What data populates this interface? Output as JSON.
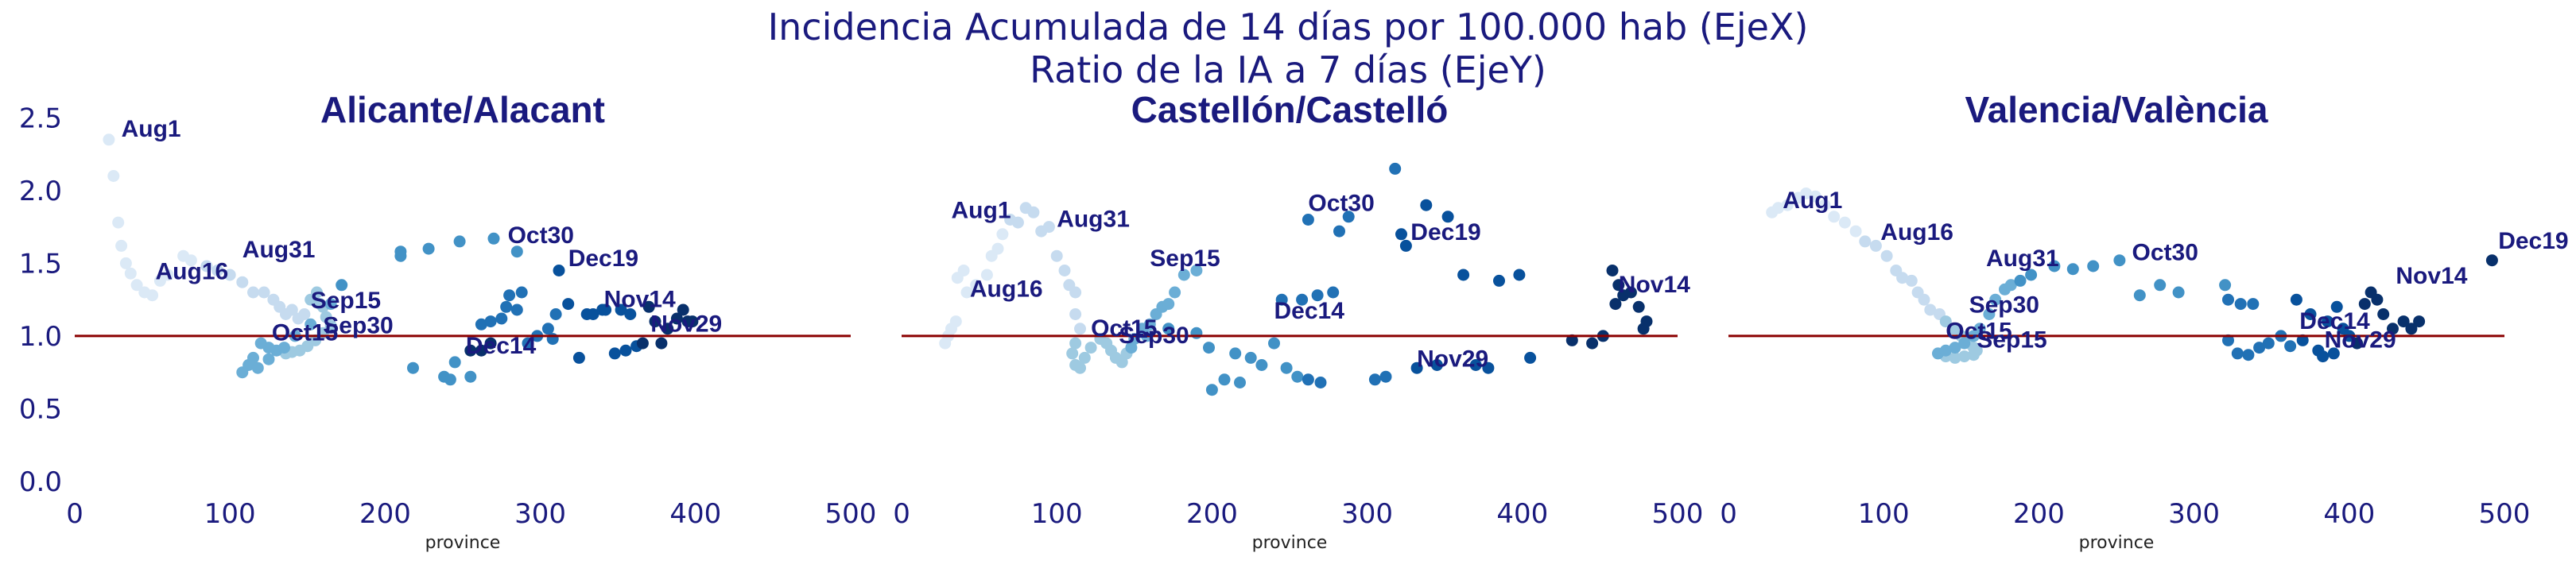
{
  "figure": {
    "title_line1": "Incidencia Acumulada de 14 días por 100.000 hab (EjeX)",
    "title_line2": "Ratio de la IA a 7 días (EjeY)"
  },
  "colors": {
    "text": "#1a1a7e",
    "reference_line": "#8b0000",
    "point_scale": [
      "#dbe9f6",
      "#c6dbef",
      "#9ecae1",
      "#6baed6",
      "#4292c6",
      "#2171b5",
      "#08519c",
      "#08306b"
    ]
  },
  "chart_data": [
    {
      "type": "scatter",
      "title": "Alicante/Alacant",
      "xlabel": "province",
      "ylabel": "",
      "xlim": [
        0,
        500
      ],
      "ylim": [
        0,
        2.6
      ],
      "xticks": [
        0,
        100,
        200,
        300,
        400,
        500
      ],
      "yticks": [
        0.0,
        0.5,
        1.0,
        1.5,
        2.0,
        2.5
      ],
      "ytick_labels": [
        "0.0",
        "0.5",
        "1.0",
        "1.5",
        "2.0",
        "2.5"
      ],
      "show_yticks": true,
      "reference_y": 1.0,
      "points": [
        [
          22,
          2.35
        ],
        [
          25,
          2.1
        ],
        [
          28,
          1.78
        ],
        [
          30,
          1.62
        ],
        [
          33,
          1.5
        ],
        [
          36,
          1.43
        ],
        [
          40,
          1.35
        ],
        [
          45,
          1.3
        ],
        [
          50,
          1.28
        ],
        [
          55,
          1.38
        ],
        [
          60,
          1.42
        ],
        [
          70,
          1.55
        ],
        [
          75,
          1.52
        ],
        [
          85,
          1.48
        ],
        [
          92,
          1.45
        ],
        [
          100,
          1.42
        ],
        [
          108,
          1.37
        ],
        [
          115,
          1.3
        ],
        [
          122,
          1.3
        ],
        [
          128,
          1.25
        ],
        [
          132,
          1.2
        ],
        [
          136,
          1.15
        ],
        [
          140,
          1.18
        ],
        [
          144,
          1.12
        ],
        [
          148,
          1.15
        ],
        [
          152,
          1.25
        ],
        [
          156,
          1.3
        ],
        [
          158,
          1.22
        ],
        [
          160,
          1.2
        ],
        [
          162,
          1.13
        ],
        [
          165,
          1.07
        ],
        [
          160,
          1.02
        ],
        [
          155,
          0.97
        ],
        [
          150,
          0.93
        ],
        [
          145,
          0.9
        ],
        [
          140,
          0.89
        ],
        [
          136,
          0.88
        ],
        [
          130,
          0.9
        ],
        [
          125,
          0.92
        ],
        [
          120,
          0.95
        ],
        [
          115,
          0.85
        ],
        [
          112,
          0.8
        ],
        [
          108,
          0.75
        ],
        [
          118,
          0.78
        ],
        [
          125,
          0.84
        ],
        [
          135,
          0.92
        ],
        [
          142,
          1.0
        ],
        [
          152,
          1.08
        ],
        [
          165,
          1.22
        ],
        [
          172,
          1.35
        ],
        [
          210,
          1.55
        ],
        [
          210,
          1.58
        ],
        [
          228,
          1.6
        ],
        [
          248,
          1.65
        ],
        [
          270,
          1.67
        ],
        [
          285,
          1.58
        ],
        [
          218,
          0.78
        ],
        [
          238,
          0.72
        ],
        [
          242,
          0.7
        ],
        [
          245,
          0.82
        ],
        [
          255,
          0.72
        ],
        [
          262,
          1.08
        ],
        [
          268,
          1.1
        ],
        [
          275,
          1.12
        ],
        [
          278,
          1.2
        ],
        [
          280,
          1.28
        ],
        [
          285,
          1.18
        ],
        [
          288,
          1.3
        ],
        [
          292,
          0.95
        ],
        [
          298,
          1.0
        ],
        [
          305,
          1.05
        ],
        [
          308,
          0.98
        ],
        [
          310,
          1.15
        ],
        [
          312,
          1.45
        ],
        [
          318,
          1.22
        ],
        [
          325,
          0.85
        ],
        [
          330,
          1.15
        ],
        [
          334,
          1.15
        ],
        [
          340,
          1.18
        ],
        [
          342,
          1.18
        ],
        [
          348,
          0.88
        ],
        [
          352,
          1.18
        ],
        [
          355,
          0.9
        ],
        [
          358,
          1.15
        ],
        [
          362,
          0.93
        ],
        [
          366,
          0.95
        ],
        [
          370,
          1.2
        ],
        [
          374,
          1.1
        ],
        [
          378,
          0.95
        ],
        [
          382,
          1.05
        ],
        [
          388,
          1.12
        ],
        [
          392,
          1.18
        ],
        [
          395,
          1.1
        ],
        [
          398,
          1.1
        ],
        [
          255,
          0.9
        ],
        [
          262,
          0.9
        ],
        [
          268,
          0.95
        ]
      ],
      "annotations": [
        {
          "text": "Aug1",
          "x": 30,
          "y": 2.37
        },
        {
          "text": "Aug16",
          "x": 52,
          "y": 1.39
        },
        {
          "text": "Aug31",
          "x": 108,
          "y": 1.54
        },
        {
          "text": "Sep15",
          "x": 152,
          "y": 1.19
        },
        {
          "text": "Sep30",
          "x": 160,
          "y": 1.02
        },
        {
          "text": "Oct15",
          "x": 127,
          "y": 0.97
        },
        {
          "text": "Oct30",
          "x": 279,
          "y": 1.64
        },
        {
          "text": "Nov14",
          "x": 341,
          "y": 1.2
        },
        {
          "text": "Nov29",
          "x": 371,
          "y": 1.03
        },
        {
          "text": "Dec14",
          "x": 252,
          "y": 0.88
        },
        {
          "text": "Dec19",
          "x": 318,
          "y": 1.48
        }
      ]
    },
    {
      "type": "scatter",
      "title": "Castellón/Castelló",
      "xlabel": "province",
      "ylabel": "",
      "xlim": [
        0,
        500
      ],
      "ylim": [
        0,
        2.6
      ],
      "xticks": [
        0,
        100,
        200,
        300,
        400,
        500
      ],
      "yticks": [],
      "ytick_labels": [],
      "show_yticks": false,
      "reference_y": 1.0,
      "points": [
        [
          28,
          0.95
        ],
        [
          30,
          1.0
        ],
        [
          32,
          1.05
        ],
        [
          35,
          1.1
        ],
        [
          36,
          1.4
        ],
        [
          40,
          1.45
        ],
        [
          42,
          1.3
        ],
        [
          48,
          1.35
        ],
        [
          55,
          1.42
        ],
        [
          58,
          1.55
        ],
        [
          62,
          1.6
        ],
        [
          65,
          1.7
        ],
        [
          70,
          1.8
        ],
        [
          75,
          1.78
        ],
        [
          80,
          1.88
        ],
        [
          85,
          1.85
        ],
        [
          90,
          1.72
        ],
        [
          95,
          1.75
        ],
        [
          100,
          1.55
        ],
        [
          105,
          1.45
        ],
        [
          108,
          1.35
        ],
        [
          112,
          1.3
        ],
        [
          112,
          1.15
        ],
        [
          115,
          1.05
        ],
        [
          112,
          0.95
        ],
        [
          110,
          0.88
        ],
        [
          112,
          0.8
        ],
        [
          115,
          0.78
        ],
        [
          118,
          0.85
        ],
        [
          122,
          0.92
        ],
        [
          128,
          0.98
        ],
        [
          132,
          0.95
        ],
        [
          135,
          0.9
        ],
        [
          138,
          0.85
        ],
        [
          142,
          0.82
        ],
        [
          145,
          0.88
        ],
        [
          148,
          0.92
        ],
        [
          150,
          0.98
        ],
        [
          155,
          1.05
        ],
        [
          158,
          1.0
        ],
        [
          160,
          1.08
        ],
        [
          164,
          1.15
        ],
        [
          168,
          1.2
        ],
        [
          172,
          1.22
        ],
        [
          176,
          1.3
        ],
        [
          182,
          1.42
        ],
        [
          190,
          1.45
        ],
        [
          172,
          1.05
        ],
        [
          190,
          1.02
        ],
        [
          198,
          0.92
        ],
        [
          200,
          0.63
        ],
        [
          208,
          0.7
        ],
        [
          215,
          0.88
        ],
        [
          218,
          0.68
        ],
        [
          225,
          0.85
        ],
        [
          232,
          0.8
        ],
        [
          240,
          0.95
        ],
        [
          248,
          0.78
        ],
        [
          255,
          0.72
        ],
        [
          262,
          0.7
        ],
        [
          270,
          0.68
        ],
        [
          245,
          1.25
        ],
        [
          258,
          1.25
        ],
        [
          268,
          1.28
        ],
        [
          278,
          1.3
        ],
        [
          262,
          1.8
        ],
        [
          282,
          1.72
        ],
        [
          288,
          1.82
        ],
        [
          305,
          0.7
        ],
        [
          312,
          0.72
        ],
        [
          318,
          2.15
        ],
        [
          322,
          1.7
        ],
        [
          325,
          1.62
        ],
        [
          332,
          0.78
        ],
        [
          338,
          1.9
        ],
        [
          345,
          0.8
        ],
        [
          352,
          1.82
        ],
        [
          362,
          1.42
        ],
        [
          370,
          0.8
        ],
        [
          378,
          0.78
        ],
        [
          385,
          1.38
        ],
        [
          398,
          1.42
        ],
        [
          405,
          0.85
        ],
        [
          432,
          0.97
        ],
        [
          445,
          0.95
        ],
        [
          452,
          1.0
        ],
        [
          458,
          1.45
        ],
        [
          460,
          1.22
        ],
        [
          462,
          1.35
        ],
        [
          465,
          1.28
        ],
        [
          470,
          1.3
        ],
        [
          475,
          1.2
        ],
        [
          478,
          1.05
        ],
        [
          480,
          1.1
        ]
      ],
      "annotations": [
        {
          "text": "Aug1",
          "x": 32,
          "y": 1.81
        },
        {
          "text": "Aug31",
          "x": 100,
          "y": 1.75
        },
        {
          "text": "Aug16",
          "x": 44,
          "y": 1.27
        },
        {
          "text": "Sep15",
          "x": 160,
          "y": 1.48
        },
        {
          "text": "Oct15",
          "x": 122,
          "y": 1.0
        },
        {
          "text": "Sep30",
          "x": 140,
          "y": 0.95
        },
        {
          "text": "Oct30",
          "x": 262,
          "y": 1.86
        },
        {
          "text": "Dec19",
          "x": 328,
          "y": 1.66
        },
        {
          "text": "Dec14",
          "x": 240,
          "y": 1.12
        },
        {
          "text": "Nov29",
          "x": 332,
          "y": 0.79
        },
        {
          "text": "Nov14",
          "x": 462,
          "y": 1.3
        }
      ]
    },
    {
      "type": "scatter",
      "title": "Valencia/València",
      "xlabel": "province",
      "ylabel": "",
      "xlim": [
        0,
        500
      ],
      "ylim": [
        0,
        2.6
      ],
      "xticks": [
        0,
        100,
        200,
        300,
        400,
        500
      ],
      "yticks": [],
      "ytick_labels": [],
      "show_yticks": false,
      "reference_y": 1.0,
      "points": [
        [
          28,
          1.85
        ],
        [
          32,
          1.88
        ],
        [
          38,
          1.9
        ],
        [
          45,
          1.95
        ],
        [
          50,
          1.98
        ],
        [
          56,
          1.96
        ],
        [
          62,
          1.9
        ],
        [
          68,
          1.82
        ],
        [
          75,
          1.78
        ],
        [
          82,
          1.72
        ],
        [
          88,
          1.65
        ],
        [
          95,
          1.62
        ],
        [
          102,
          1.55
        ],
        [
          108,
          1.45
        ],
        [
          112,
          1.4
        ],
        [
          118,
          1.38
        ],
        [
          122,
          1.3
        ],
        [
          126,
          1.25
        ],
        [
          130,
          1.18
        ],
        [
          136,
          1.15
        ],
        [
          140,
          1.1
        ],
        [
          145,
          1.05
        ],
        [
          150,
          1.0
        ],
        [
          155,
          0.95
        ],
        [
          158,
          0.92
        ],
        [
          160,
          0.9
        ],
        [
          158,
          0.87
        ],
        [
          152,
          0.86
        ],
        [
          146,
          0.85
        ],
        [
          140,
          0.86
        ],
        [
          135,
          0.88
        ],
        [
          140,
          0.9
        ],
        [
          146,
          0.92
        ],
        [
          152,
          0.95
        ],
        [
          158,
          1.0
        ],
        [
          162,
          1.05
        ],
        [
          168,
          1.15
        ],
        [
          172,
          1.25
        ],
        [
          178,
          1.32
        ],
        [
          182,
          1.35
        ],
        [
          188,
          1.38
        ],
        [
          195,
          1.42
        ],
        [
          210,
          1.48
        ],
        [
          222,
          1.46
        ],
        [
          235,
          1.48
        ],
        [
          252,
          1.52
        ],
        [
          265,
          1.28
        ],
        [
          278,
          1.35
        ],
        [
          290,
          1.3
        ],
        [
          320,
          1.35
        ],
        [
          322,
          1.25
        ],
        [
          330,
          1.22
        ],
        [
          338,
          1.22
        ],
        [
          322,
          0.97
        ],
        [
          328,
          0.88
        ],
        [
          335,
          0.87
        ],
        [
          342,
          0.92
        ],
        [
          348,
          0.95
        ],
        [
          356,
          1.0
        ],
        [
          362,
          0.93
        ],
        [
          366,
          1.25
        ],
        [
          370,
          0.97
        ],
        [
          375,
          1.15
        ],
        [
          380,
          0.9
        ],
        [
          383,
          0.86
        ],
        [
          386,
          1.1
        ],
        [
          390,
          0.88
        ],
        [
          392,
          1.2
        ],
        [
          396,
          1.05
        ],
        [
          400,
          1.0
        ],
        [
          405,
          0.95
        ],
        [
          410,
          1.22
        ],
        [
          414,
          1.3
        ],
        [
          418,
          1.25
        ],
        [
          422,
          1.15
        ],
        [
          428,
          1.05
        ],
        [
          435,
          1.1
        ],
        [
          440,
          1.05
        ],
        [
          445,
          1.1
        ],
        [
          492,
          1.52
        ]
      ],
      "annotations": [
        {
          "text": "Aug1",
          "x": 35,
          "y": 1.88
        },
        {
          "text": "Aug16",
          "x": 98,
          "y": 1.66
        },
        {
          "text": "Aug31",
          "x": 166,
          "y": 1.48
        },
        {
          "text": "Oct30",
          "x": 260,
          "y": 1.52
        },
        {
          "text": "Sep30",
          "x": 155,
          "y": 1.16
        },
        {
          "text": "Oct15",
          "x": 140,
          "y": 0.98
        },
        {
          "text": "Sep15",
          "x": 160,
          "y": 0.92
        },
        {
          "text": "Nov14",
          "x": 430,
          "y": 1.36
        },
        {
          "text": "Dec14",
          "x": 368,
          "y": 1.05
        },
        {
          "text": "Nov29",
          "x": 384,
          "y": 0.92
        },
        {
          "text": "Dec19",
          "x": 496,
          "y": 1.6
        }
      ]
    }
  ]
}
